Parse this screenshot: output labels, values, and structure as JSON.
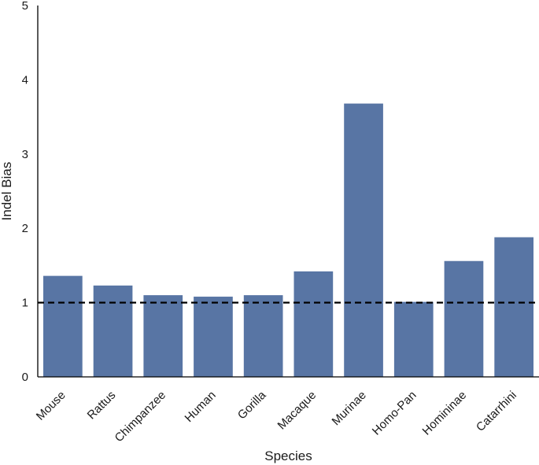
{
  "chart_data": {
    "type": "bar",
    "title": "",
    "xlabel": "Species",
    "ylabel": "Indel Bias",
    "categories": [
      "Mouse",
      "Rattus",
      "Chimpanzee",
      "Human",
      "Gorilla",
      "Macaque",
      "Murinae",
      "Homo-Pan",
      "Homininae",
      "Catarrhini"
    ],
    "values": [
      1.36,
      1.23,
      1.1,
      1.08,
      1.1,
      1.42,
      3.68,
      1.01,
      1.56,
      1.88
    ],
    "ylim": [
      0,
      5
    ],
    "yticks": [
      0,
      1,
      2,
      3,
      4,
      5
    ],
    "reference_line": {
      "y": 1,
      "style": "dashed",
      "color": "#000000"
    },
    "bar_color": "#5875a4",
    "grid": false,
    "legend": "none"
  }
}
